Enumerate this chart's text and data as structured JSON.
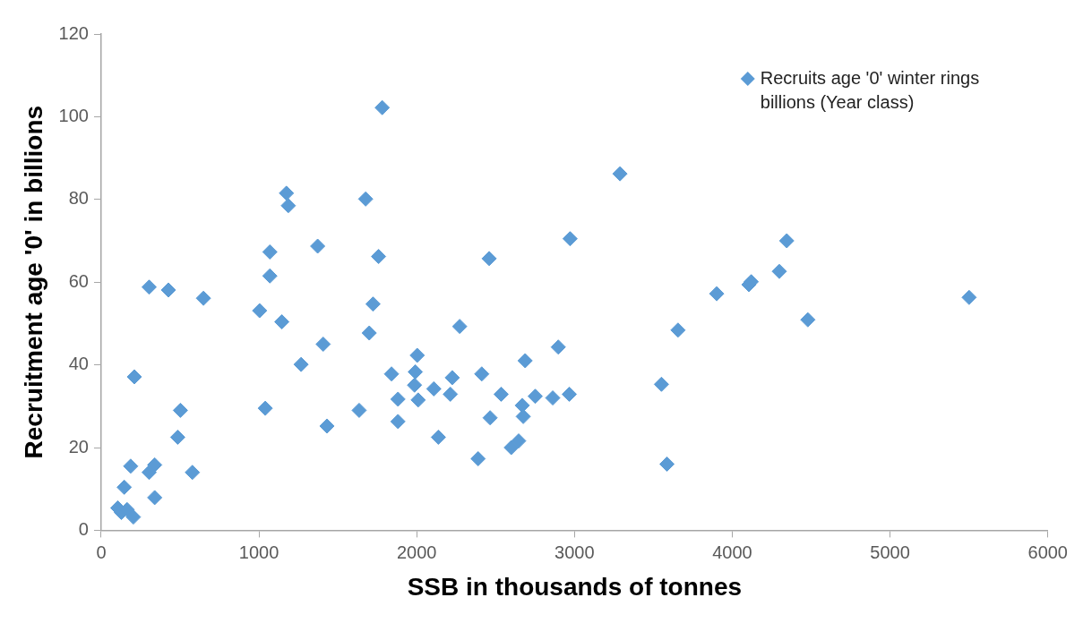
{
  "chart_data": {
    "type": "scatter",
    "xlabel": "SSB in thousands of tonnes",
    "ylabel": "Recruitment age '0' in billions",
    "xlim": [
      0,
      6000
    ],
    "xticks": [
      0,
      1000,
      2000,
      3000,
      4000,
      5000,
      6000
    ],
    "ylim": [
      0,
      120
    ],
    "yticks": [
      0,
      20,
      40,
      60,
      80,
      100,
      120
    ],
    "grid": false,
    "legend": "top right",
    "marker": "diamond",
    "series": [
      {
        "name": "Recruits age '0' winter rings billions (Year class)",
        "color": "#5b9bd5",
        "x": [
          1781,
          1676,
          2972,
          3288,
          1758,
          2459,
          1723,
          1699,
          2272,
          3656,
          2003,
          2897,
          2687,
          1840,
          1991,
          2225,
          2412,
          1986,
          2108,
          2213,
          2535,
          2751,
          2862,
          2967,
          3551,
          2669,
          1881,
          2009,
          1635,
          2675,
          2465,
          1881,
          2137,
          2646,
          2599,
          2389,
          3586,
          4345,
          4298,
          4105,
          4120,
          3901,
          4479,
          5501,
          304,
          426,
          648,
          1004,
          1069,
          1069,
          1145,
          1407,
          1267,
          210,
          502,
          1040,
          1431,
          485,
          187,
          339,
          304,
          578,
          146,
          339,
          105,
          128,
          164,
          204,
          1174,
          1186,
          1372
        ],
        "values": [
          102.2,
          80.1,
          70.5,
          86.2,
          66.2,
          65.7,
          54.7,
          47.7,
          49.3,
          48.4,
          42.3,
          44.3,
          41.0,
          37.8,
          38.3,
          36.9,
          37.8,
          35.1,
          34.2,
          32.9,
          32.9,
          32.4,
          32.0,
          32.9,
          35.3,
          30.2,
          31.7,
          31.5,
          29.0,
          27.5,
          27.2,
          26.3,
          22.5,
          21.6,
          20.0,
          17.3,
          16.0,
          70.0,
          62.6,
          59.4,
          60.1,
          57.2,
          50.9,
          56.3,
          58.8,
          58.1,
          56.1,
          53.1,
          61.5,
          67.3,
          50.4,
          45.0,
          40.1,
          37.1,
          29.0,
          29.5,
          25.2,
          22.5,
          15.5,
          15.8,
          14.0,
          14.0,
          10.4,
          7.9,
          5.4,
          4.3,
          5.0,
          3.2,
          81.5,
          78.5,
          68.7
        ]
      }
    ]
  }
}
